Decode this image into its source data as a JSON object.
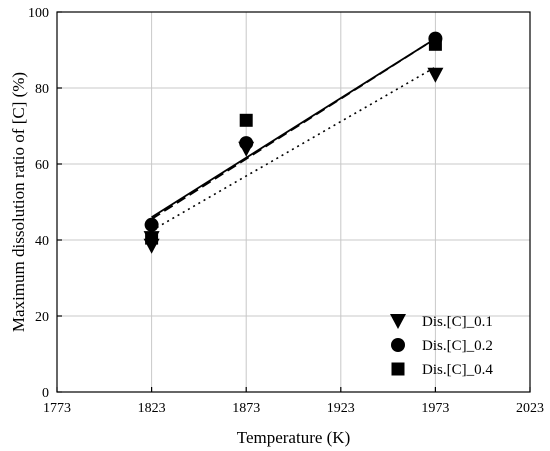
{
  "chart_data": {
    "type": "scatter",
    "xlabel": "Temperature (K)",
    "ylabel": "Maximum dissolution ratio of [C] (%)",
    "xlim": [
      1773,
      2023
    ],
    "ylim": [
      0,
      100
    ],
    "xticks": [
      1773,
      1823,
      1873,
      1923,
      1973,
      2023
    ],
    "yticks": [
      0,
      20,
      40,
      60,
      80,
      100
    ],
    "grid": true,
    "legend_position": "bottom-right",
    "series": [
      {
        "name": "Dis.[C]_0.1",
        "marker": "triangle-down",
        "x": [
          1823,
          1823,
          1873,
          1973
        ],
        "y": [
          38.5,
          40.5,
          64.0,
          83.5
        ],
        "fit": {
          "x": [
            1823,
            1973
          ],
          "y": [
            42.5,
            85.5
          ],
          "style": "dotted"
        }
      },
      {
        "name": "Dis.[C]_0.2",
        "marker": "circle",
        "x": [
          1823,
          1873,
          1973
        ],
        "y": [
          44.0,
          65.5,
          93.0
        ],
        "fit": {
          "x": [
            1823,
            1973
          ],
          "y": [
            46.0,
            93.0
          ],
          "style": "solid"
        }
      },
      {
        "name": "Dis.[C]_0.4",
        "marker": "square",
        "x": [
          1823,
          1873,
          1973
        ],
        "y": [
          40.5,
          71.5,
          91.5
        ],
        "fit": {
          "x": [
            1823,
            1973
          ],
          "y": [
            45.5,
            93.0
          ],
          "style": "dashed"
        }
      }
    ]
  }
}
